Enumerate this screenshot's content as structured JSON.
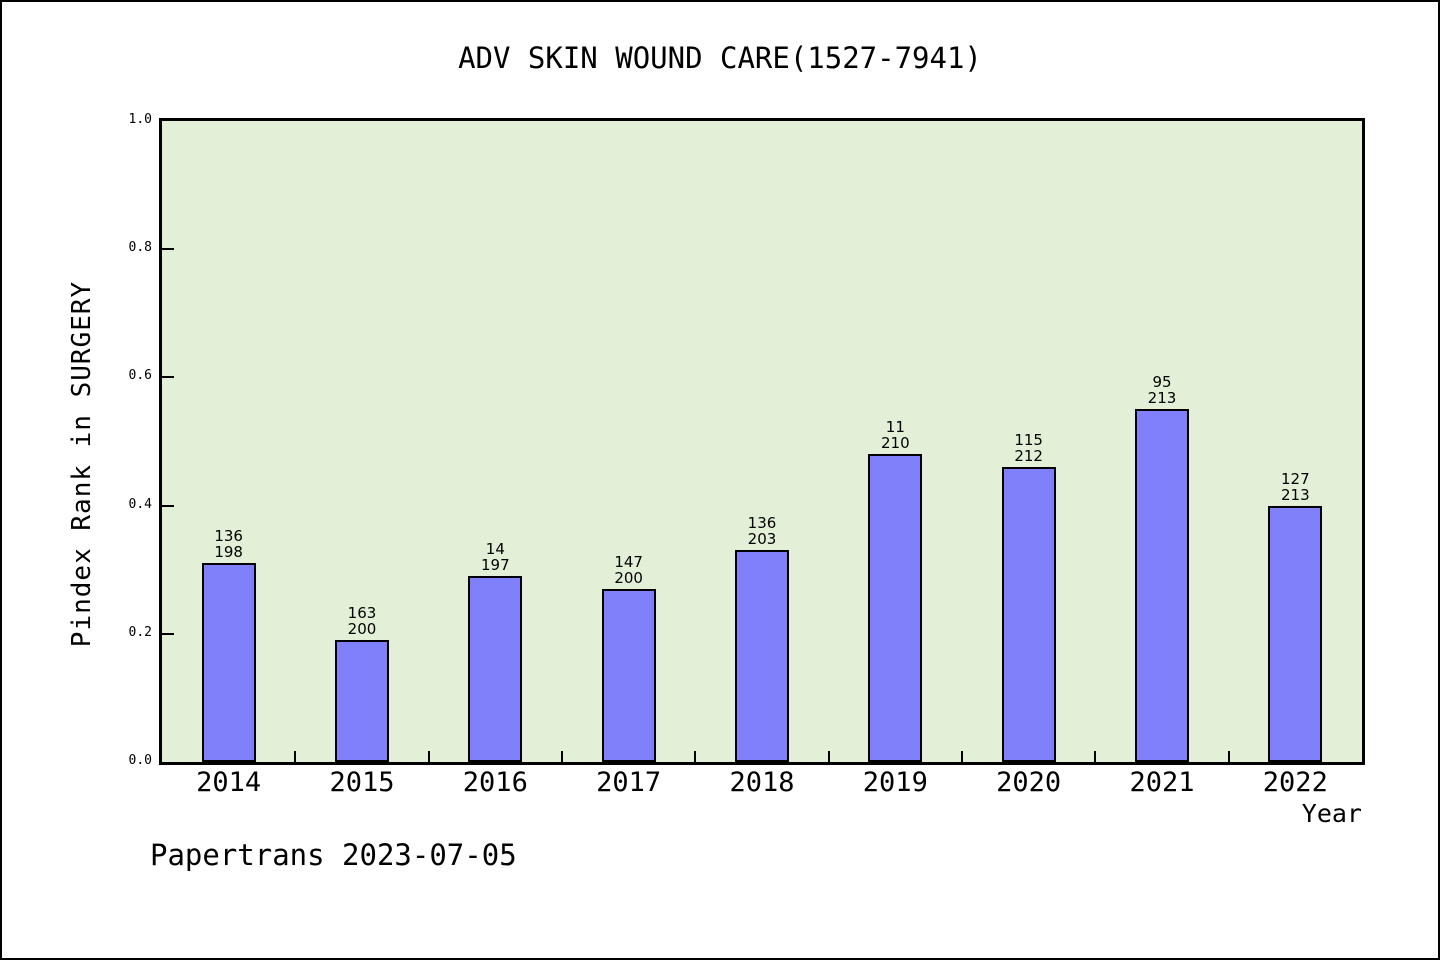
{
  "chart_data": {
    "type": "bar",
    "title": "ADV SKIN WOUND CARE(1527-7941)",
    "xlabel": "Year",
    "ylabel": "Pindex Rank in SURGERY",
    "categories": [
      "2014",
      "2015",
      "2016",
      "2017",
      "2018",
      "2019",
      "2020",
      "2021",
      "2022"
    ],
    "values": [
      0.31,
      0.19,
      0.29,
      0.27,
      0.33,
      0.48,
      0.46,
      0.55,
      0.4
    ],
    "bar_labels": [
      [
        "136",
        "198"
      ],
      [
        "163",
        "200"
      ],
      [
        "14",
        "197"
      ],
      [
        "147",
        "200"
      ],
      [
        "136",
        "203"
      ],
      [
        "11",
        "210"
      ],
      [
        "115",
        "212"
      ],
      [
        "95",
        "213"
      ],
      [
        "127",
        "213"
      ]
    ],
    "yticks": [
      0.0,
      0.2,
      0.4,
      0.6,
      0.8,
      1.0
    ],
    "ytick_labels": [
      "0.0",
      "0.2",
      "0.4",
      "0.6",
      "0.8",
      "1.0"
    ],
    "ylim": [
      0,
      1
    ],
    "grid": false,
    "legend_position": "none",
    "bar_color": "#8080fa",
    "bar_edge_color": "#000000",
    "plot_background": "#e3efd6",
    "page_background": "#ffffff"
  },
  "footer": {
    "text": "Papertrans 2023-07-05"
  }
}
